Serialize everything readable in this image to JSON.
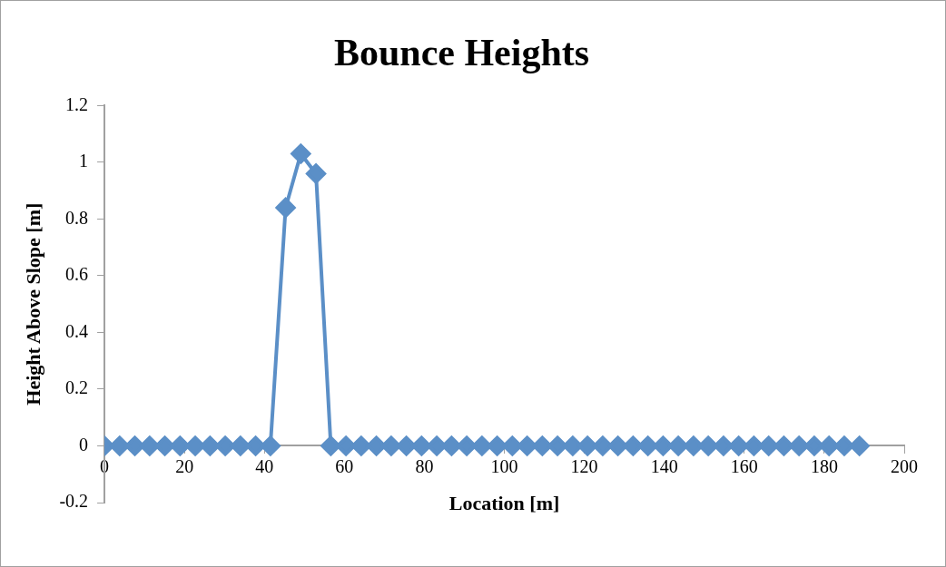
{
  "chart_data": {
    "type": "line",
    "title": "Bounce Heights",
    "xlabel": "Location [m]",
    "ylabel": "Height Above Slope [m]",
    "series": [
      {
        "color": "#5b8fc7",
        "x": [
          0,
          3.8,
          7.6,
          11.3,
          15.1,
          18.9,
          22.7,
          26.4,
          30.2,
          34.0,
          37.8,
          41.5,
          45.3,
          49.1,
          52.9,
          56.6,
          60.4,
          64.2,
          68.0,
          71.7,
          75.5,
          79.3,
          83.1,
          86.8,
          90.6,
          94.4,
          98.2,
          102.0,
          105.7,
          109.5,
          113.3,
          117.1,
          120.8,
          124.6,
          128.4,
          132.2,
          135.9,
          139.7,
          143.5,
          147.3,
          151.0,
          154.8,
          158.6,
          162.4,
          166.1,
          169.9,
          173.7,
          177.5,
          181.2,
          185.0,
          188.8
        ],
        "values": [
          0,
          0,
          0,
          0,
          0,
          0,
          0,
          0,
          0,
          0,
          0,
          0,
          0.84,
          1.03,
          0.96,
          0,
          0,
          0,
          0,
          0,
          0,
          0,
          0,
          0,
          0,
          0,
          0,
          0,
          0,
          0,
          0,
          0,
          0,
          0,
          0,
          0,
          0,
          0,
          0,
          0,
          0,
          0,
          0,
          0,
          0,
          0,
          0,
          0,
          0,
          0,
          0
        ]
      }
    ],
    "xlim": [
      0,
      200
    ],
    "xticks": [
      0,
      20,
      40,
      60,
      80,
      100,
      120,
      140,
      160,
      180,
      200
    ],
    "ylim": [
      -0.2,
      1.2
    ],
    "yticks": [
      -0.2,
      0,
      0.2,
      0.4,
      0.6,
      0.8,
      1,
      1.2
    ],
    "grid": false,
    "legend": false,
    "marker": "diamond",
    "line_style": "solid"
  }
}
